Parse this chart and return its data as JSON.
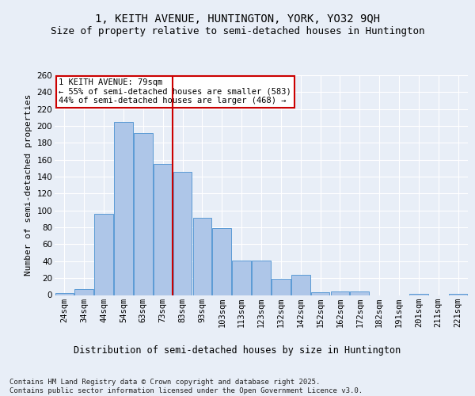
{
  "title": "1, KEITH AVENUE, HUNTINGTON, YORK, YO32 9QH",
  "subtitle": "Size of property relative to semi-detached houses in Huntington",
  "xlabel": "Distribution of semi-detached houses by size in Huntington",
  "ylabel": "Number of semi-detached properties",
  "categories": [
    "24sqm",
    "34sqm",
    "44sqm",
    "54sqm",
    "63sqm",
    "73sqm",
    "83sqm",
    "93sqm",
    "103sqm",
    "113sqm",
    "123sqm",
    "132sqm",
    "142sqm",
    "152sqm",
    "162sqm",
    "172sqm",
    "182sqm",
    "191sqm",
    "201sqm",
    "211sqm",
    "221sqm"
  ],
  "values": [
    2,
    7,
    96,
    205,
    192,
    155,
    146,
    91,
    79,
    41,
    41,
    19,
    24,
    3,
    4,
    4,
    0,
    0,
    1,
    0,
    1
  ],
  "bar_color": "#aec6e8",
  "bar_edge_color": "#5b9bd5",
  "property_line_x": 5.5,
  "property_label": "1 KEITH AVENUE: 79sqm",
  "annotation_smaller": "← 55% of semi-detached houses are smaller (583)",
  "annotation_larger": "44% of semi-detached houses are larger (468) →",
  "annotation_box_color": "#ffffff",
  "annotation_box_edge": "#cc0000",
  "line_color": "#cc0000",
  "background_color": "#e8eef7",
  "grid_color": "#ffffff",
  "ylim": [
    0,
    260
  ],
  "yticks": [
    0,
    20,
    40,
    60,
    80,
    100,
    120,
    140,
    160,
    180,
    200,
    220,
    240,
    260
  ],
  "footer": "Contains HM Land Registry data © Crown copyright and database right 2025.\nContains public sector information licensed under the Open Government Licence v3.0.",
  "title_fontsize": 10,
  "subtitle_fontsize": 9,
  "xlabel_fontsize": 8.5,
  "ylabel_fontsize": 8,
  "tick_fontsize": 7.5,
  "footer_fontsize": 6.5,
  "annotation_fontsize": 7.5
}
